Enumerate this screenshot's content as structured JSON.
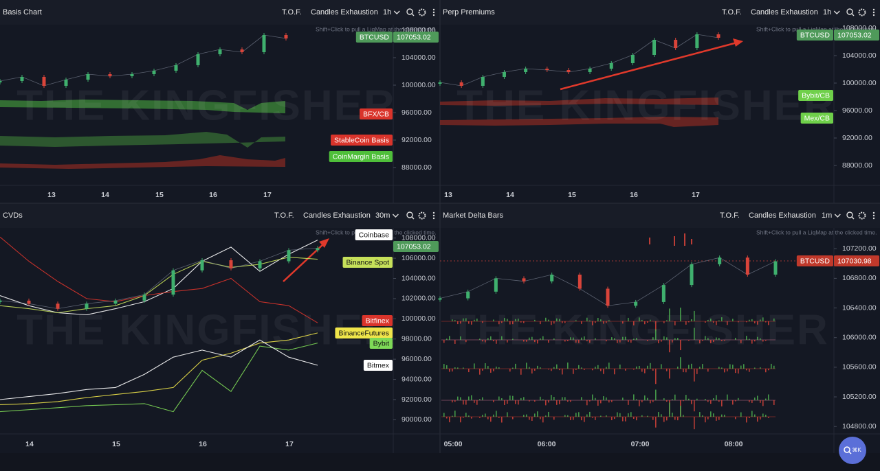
{
  "watermark": "THE KINGFISHER",
  "hint": "Shift+Click to pull a LiqMap at the clicked time.",
  "tool_labels": [
    "T.O.F.",
    "Candles Exhaustion"
  ],
  "search_hint": "⌘K",
  "panels": [
    {
      "title": "Basis Chart",
      "interval": "1h",
      "ylim": [
        85400,
        108800
      ],
      "yticks": [
        {
          "value": 108000,
          "label": "108000.00"
        },
        {
          "value": 104000,
          "label": "104000.00"
        },
        {
          "value": 100000,
          "label": "100000.00"
        },
        {
          "value": 96000,
          "label": "96000.00"
        },
        {
          "value": 92000,
          "label": "92000.00"
        },
        {
          "value": 88000,
          "label": "88000.00"
        }
      ],
      "xticks": [
        "13",
        "14",
        "15",
        "16",
        "17"
      ],
      "price": [
        100600,
        101200,
        99900,
        100800,
        101600,
        101300,
        101600,
        102100,
        102900,
        104500,
        105200,
        104800,
        107300,
        106800
      ],
      "price_tag": {
        "name": "BTCUSD",
        "value": "107053.02"
      },
      "tags": [
        {
          "name": "BFX/CB",
          "color": "#d9342b"
        },
        {
          "name": "StableCoin Basis",
          "color": "#d9342b"
        },
        {
          "name": "CoinMargin Basis",
          "color": "#4fbf3a"
        }
      ]
    },
    {
      "title": "Perp Premiums",
      "interval": "1h",
      "ylim": [
        85100,
        108500
      ],
      "yticks": [
        {
          "value": 108000,
          "label": "108000.00"
        },
        {
          "value": 104000,
          "label": "104000.00"
        },
        {
          "value": 100000,
          "label": "100000.00"
        },
        {
          "value": 96000,
          "label": "96000.00"
        },
        {
          "value": 92000,
          "label": "92000.00"
        },
        {
          "value": 88000,
          "label": "88000.00"
        }
      ],
      "xticks": [
        "13",
        "14",
        "15",
        "16",
        "17"
      ],
      "price": [
        100100,
        99600,
        100900,
        101600,
        102100,
        101900,
        101600,
        102100,
        102900,
        104100,
        106300,
        105100,
        107100,
        106600
      ],
      "price_tag": {
        "name": "BTCUSD",
        "value": "107053.02"
      },
      "tags": [
        {
          "name": "Bybit/CB",
          "color": "#6fd04a"
        },
        {
          "name": "Mex/CB",
          "color": "#6fd04a"
        }
      ]
    },
    {
      "title": "CVDs",
      "interval": "30m",
      "ylim": [
        88600,
        109000
      ],
      "yticks": [
        {
          "value": 108000,
          "label": "108000.00"
        },
        {
          "value": 106000,
          "label": "106000.00"
        },
        {
          "value": 104000,
          "label": "104000.00"
        },
        {
          "value": 102000,
          "label": "102000.00"
        },
        {
          "value": 100000,
          "label": "100000.00"
        },
        {
          "value": 98000,
          "label": "98000.00"
        },
        {
          "value": 96000,
          "label": "96000.00"
        },
        {
          "value": 94000,
          "label": "94000.00"
        },
        {
          "value": 92000,
          "label": "92000.00"
        },
        {
          "value": 90000,
          "label": "90000.00"
        }
      ],
      "xticks": [
        "14",
        "15",
        "16",
        "17"
      ],
      "price": [
        101800,
        101500,
        101000,
        101500,
        101800,
        102400,
        104800,
        105800,
        105000,
        105700,
        106800,
        107000
      ],
      "price_tag": {
        "value": "107053.02"
      },
      "series": [
        {
          "name": "Coinbase",
          "color": "#ffffff",
          "values": [
            102300,
            101300,
            100600,
            100400,
            101000,
            101700,
            103000,
            105700,
            107100,
            104700,
            106400,
            107800
          ]
        },
        {
          "name": "Binance Spot",
          "color": "#c6e05a",
          "values": [
            101300,
            101000,
            100600,
            101000,
            101300,
            102300,
            104400,
            105700,
            105100,
            105400,
            106100,
            105900
          ]
        },
        {
          "name": "Bitfinex",
          "color": "#d9342b",
          "values": [
            108100,
            105700,
            103700,
            102000,
            101700,
            102300,
            102700,
            103000,
            104000,
            101700,
            101300,
            99600
          ]
        },
        {
          "name": "BinanceFutures",
          "color": "#f0e54a",
          "values": [
            91500,
            91600,
            91800,
            92200,
            92500,
            92800,
            93200,
            95900,
            96600,
            97600,
            97900,
            98600
          ]
        },
        {
          "name": "Bybit",
          "color": "#7ed957",
          "values": [
            90800,
            91000,
            91200,
            91400,
            91500,
            91600,
            90800,
            94900,
            92800,
            97300,
            96900,
            97600
          ]
        },
        {
          "name": "Bitmex",
          "color": "#ffffff",
          "values": [
            92000,
            92300,
            92600,
            93000,
            93200,
            94500,
            96200,
            96900,
            96200,
            97900,
            96200,
            95400
          ]
        }
      ]
    },
    {
      "title": "Market Delta Bars",
      "interval": "1m",
      "ylim": [
        104700,
        107480
      ],
      "yticks": [
        {
          "value": 107200,
          "label": "107200.00"
        },
        {
          "value": 106800,
          "label": "106800.00"
        },
        {
          "value": 106400,
          "label": "106400.00"
        },
        {
          "value": 106000,
          "label": "106000.00"
        },
        {
          "value": 105600,
          "label": "105600.00"
        },
        {
          "value": 105200,
          "label": "105200.00"
        },
        {
          "value": 104800,
          "label": "104800.00"
        }
      ],
      "xticks": [
        "05:00",
        "06:00",
        "07:00",
        "08:00"
      ],
      "price": [
        106530,
        106620,
        106800,
        106760,
        106850,
        106660,
        106430,
        106480,
        106710,
        106990,
        107080,
        106850,
        107030
      ],
      "price_tag": {
        "name": "BTCUSD",
        "value": "107030.98"
      }
    }
  ]
}
